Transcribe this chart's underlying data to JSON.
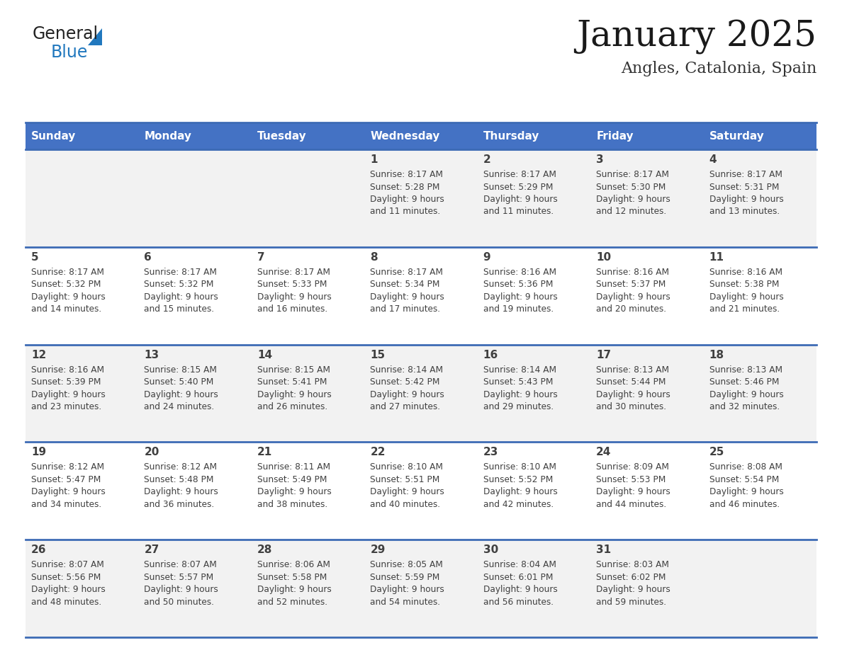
{
  "title": "January 2025",
  "subtitle": "Angles, Catalonia, Spain",
  "days_of_week": [
    "Sunday",
    "Monday",
    "Tuesday",
    "Wednesday",
    "Thursday",
    "Friday",
    "Saturday"
  ],
  "header_bg": "#4472C4",
  "header_text_color": "#FFFFFF",
  "cell_bg_odd": "#F2F2F2",
  "cell_bg_even": "#FFFFFF",
  "border_color": "#3D6BB5",
  "text_color": "#404040",
  "title_color": "#1a1a1a",
  "subtitle_color": "#333333",
  "logo_general_color": "#222222",
  "logo_blue_color": "#2178be",
  "logo_triangle_color": "#2178be",
  "weeks": [
    [
      {
        "day": "",
        "sunrise": "",
        "sunset": "",
        "daylight": ""
      },
      {
        "day": "",
        "sunrise": "",
        "sunset": "",
        "daylight": ""
      },
      {
        "day": "",
        "sunrise": "",
        "sunset": "",
        "daylight": ""
      },
      {
        "day": "1",
        "sunrise": "8:17 AM",
        "sunset": "5:28 PM",
        "daylight": "9 hours and 11 minutes."
      },
      {
        "day": "2",
        "sunrise": "8:17 AM",
        "sunset": "5:29 PM",
        "daylight": "9 hours and 11 minutes."
      },
      {
        "day": "3",
        "sunrise": "8:17 AM",
        "sunset": "5:30 PM",
        "daylight": "9 hours and 12 minutes."
      },
      {
        "day": "4",
        "sunrise": "8:17 AM",
        "sunset": "5:31 PM",
        "daylight": "9 hours and 13 minutes."
      }
    ],
    [
      {
        "day": "5",
        "sunrise": "8:17 AM",
        "sunset": "5:32 PM",
        "daylight": "9 hours and 14 minutes."
      },
      {
        "day": "6",
        "sunrise": "8:17 AM",
        "sunset": "5:32 PM",
        "daylight": "9 hours and 15 minutes."
      },
      {
        "day": "7",
        "sunrise": "8:17 AM",
        "sunset": "5:33 PM",
        "daylight": "9 hours and 16 minutes."
      },
      {
        "day": "8",
        "sunrise": "8:17 AM",
        "sunset": "5:34 PM",
        "daylight": "9 hours and 17 minutes."
      },
      {
        "day": "9",
        "sunrise": "8:16 AM",
        "sunset": "5:36 PM",
        "daylight": "9 hours and 19 minutes."
      },
      {
        "day": "10",
        "sunrise": "8:16 AM",
        "sunset": "5:37 PM",
        "daylight": "9 hours and 20 minutes."
      },
      {
        "day": "11",
        "sunrise": "8:16 AM",
        "sunset": "5:38 PM",
        "daylight": "9 hours and 21 minutes."
      }
    ],
    [
      {
        "day": "12",
        "sunrise": "8:16 AM",
        "sunset": "5:39 PM",
        "daylight": "9 hours and 23 minutes."
      },
      {
        "day": "13",
        "sunrise": "8:15 AM",
        "sunset": "5:40 PM",
        "daylight": "9 hours and 24 minutes."
      },
      {
        "day": "14",
        "sunrise": "8:15 AM",
        "sunset": "5:41 PM",
        "daylight": "9 hours and 26 minutes."
      },
      {
        "day": "15",
        "sunrise": "8:14 AM",
        "sunset": "5:42 PM",
        "daylight": "9 hours and 27 minutes."
      },
      {
        "day": "16",
        "sunrise": "8:14 AM",
        "sunset": "5:43 PM",
        "daylight": "9 hours and 29 minutes."
      },
      {
        "day": "17",
        "sunrise": "8:13 AM",
        "sunset": "5:44 PM",
        "daylight": "9 hours and 30 minutes."
      },
      {
        "day": "18",
        "sunrise": "8:13 AM",
        "sunset": "5:46 PM",
        "daylight": "9 hours and 32 minutes."
      }
    ],
    [
      {
        "day": "19",
        "sunrise": "8:12 AM",
        "sunset": "5:47 PM",
        "daylight": "9 hours and 34 minutes."
      },
      {
        "day": "20",
        "sunrise": "8:12 AM",
        "sunset": "5:48 PM",
        "daylight": "9 hours and 36 minutes."
      },
      {
        "day": "21",
        "sunrise": "8:11 AM",
        "sunset": "5:49 PM",
        "daylight": "9 hours and 38 minutes."
      },
      {
        "day": "22",
        "sunrise": "8:10 AM",
        "sunset": "5:51 PM",
        "daylight": "9 hours and 40 minutes."
      },
      {
        "day": "23",
        "sunrise": "8:10 AM",
        "sunset": "5:52 PM",
        "daylight": "9 hours and 42 minutes."
      },
      {
        "day": "24",
        "sunrise": "8:09 AM",
        "sunset": "5:53 PM",
        "daylight": "9 hours and 44 minutes."
      },
      {
        "day": "25",
        "sunrise": "8:08 AM",
        "sunset": "5:54 PM",
        "daylight": "9 hours and 46 minutes."
      }
    ],
    [
      {
        "day": "26",
        "sunrise": "8:07 AM",
        "sunset": "5:56 PM",
        "daylight": "9 hours and 48 minutes."
      },
      {
        "day": "27",
        "sunrise": "8:07 AM",
        "sunset": "5:57 PM",
        "daylight": "9 hours and 50 minutes."
      },
      {
        "day": "28",
        "sunrise": "8:06 AM",
        "sunset": "5:58 PM",
        "daylight": "9 hours and 52 minutes."
      },
      {
        "day": "29",
        "sunrise": "8:05 AM",
        "sunset": "5:59 PM",
        "daylight": "9 hours and 54 minutes."
      },
      {
        "day": "30",
        "sunrise": "8:04 AM",
        "sunset": "6:01 PM",
        "daylight": "9 hours and 56 minutes."
      },
      {
        "day": "31",
        "sunrise": "8:03 AM",
        "sunset": "6:02 PM",
        "daylight": "9 hours and 59 minutes."
      },
      {
        "day": "",
        "sunrise": "",
        "sunset": "",
        "daylight": ""
      }
    ]
  ]
}
